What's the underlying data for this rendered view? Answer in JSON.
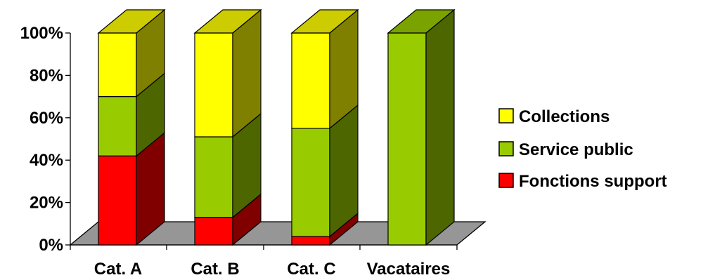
{
  "chart_data": {
    "type": "bar",
    "stacked": true,
    "percent": true,
    "three_d": true,
    "title": "",
    "xlabel": "",
    "ylabel": "",
    "ylim": [
      0,
      100
    ],
    "yticks": [
      "0%",
      "20%",
      "40%",
      "60%",
      "80%",
      "100%"
    ],
    "categories": [
      "Cat. A",
      "Cat. B",
      "Cat. C",
      "Vacataires"
    ],
    "series": [
      {
        "name": "Fonctions support",
        "color": "#ff0000",
        "values": [
          42,
          13,
          4,
          0
        ]
      },
      {
        "name": "Service public",
        "color": "#99cc00",
        "values": [
          28,
          38,
          51,
          100
        ]
      },
      {
        "name": "Collections",
        "color": "#ffff00",
        "values": [
          30,
          49,
          45,
          0
        ]
      }
    ],
    "floor_color": "#969696",
    "legend": {
      "position": "right",
      "entries": [
        "Collections",
        "Service public",
        "Fonctions support"
      ]
    },
    "grid": false
  }
}
